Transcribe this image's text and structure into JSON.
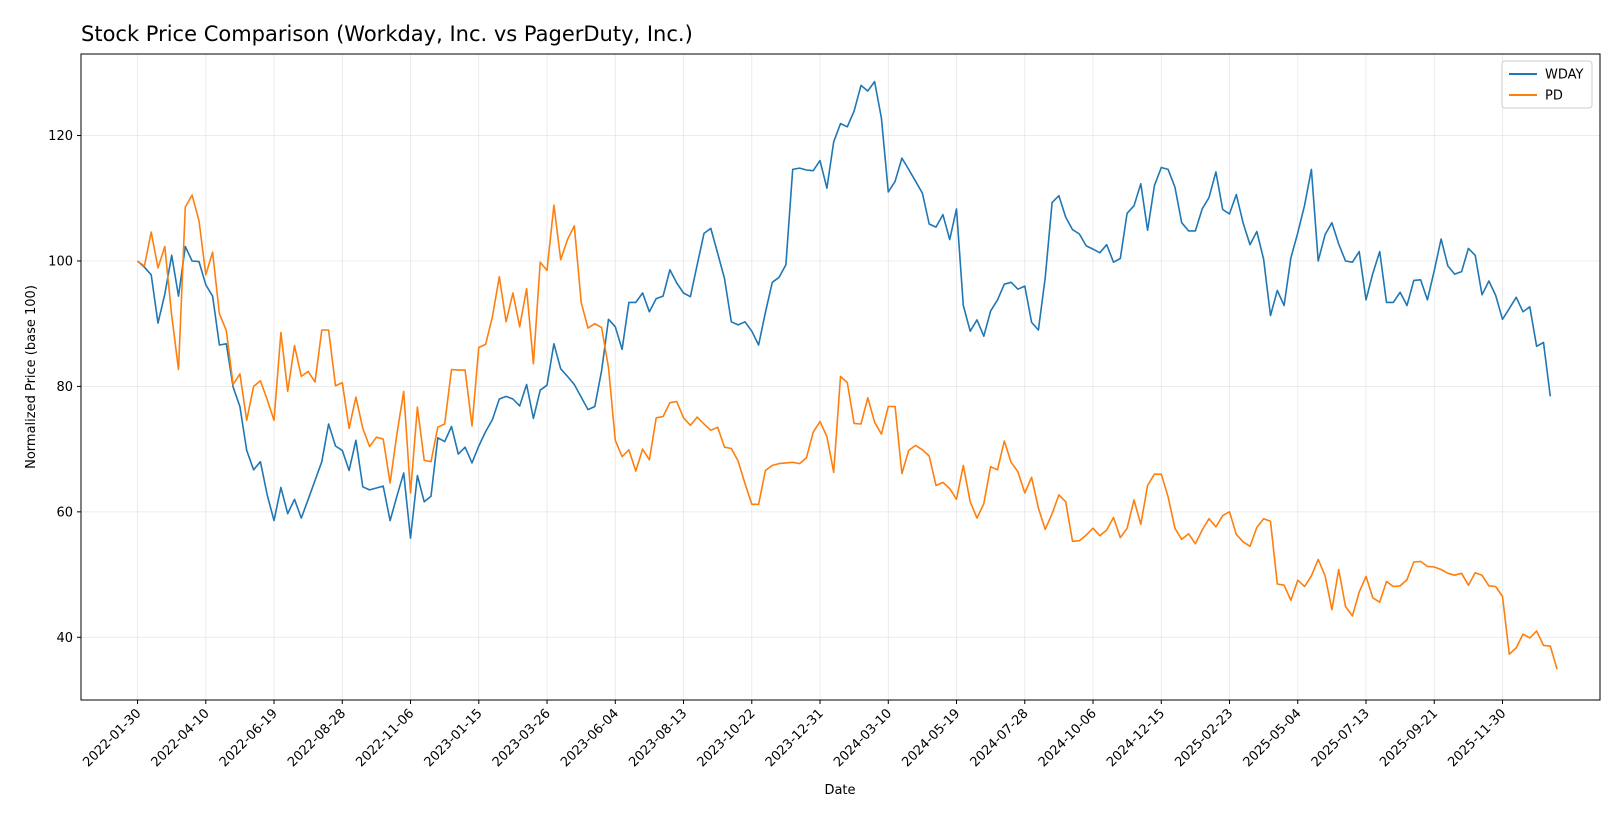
{
  "chart_data": {
    "type": "line",
    "title": "Stock Price Comparison (Workday, Inc. vs PagerDuty, Inc.)",
    "xlabel": "Date",
    "ylabel": "Normalized Price (base 100)",
    "x_range": [
      "2021-12-03",
      "2026-03-10"
    ],
    "ylim": [
      30,
      133
    ],
    "y_ticks": [
      40,
      60,
      80,
      100,
      120
    ],
    "x_ticks": [
      "2022-01-30",
      "2022-04-10",
      "2022-06-19",
      "2022-08-28",
      "2022-11-06",
      "2023-01-15",
      "2023-03-26",
      "2023-06-04",
      "2023-08-13",
      "2023-10-22",
      "2023-12-31",
      "2024-03-10",
      "2024-05-19",
      "2024-07-28",
      "2024-10-06",
      "2024-12-15",
      "2025-02-23",
      "2025-05-04",
      "2025-07-13",
      "2025-09-21",
      "2025-11-30"
    ],
    "grid": true,
    "legend_position": "top-right",
    "start_date": "2022-01-30",
    "step_days": 7,
    "series": [
      {
        "name": "WDAY",
        "color": "#1f77b4",
        "values": [
          100,
          99,
          97.8,
          90.1,
          94.7,
          100.9,
          94.4,
          102.3,
          100,
          99.9,
          96.2,
          94.4,
          86.6,
          86.8,
          79.9,
          76.8,
          69.8,
          66.7,
          68.0,
          62.7,
          58.6,
          63.9,
          59.7,
          62.0,
          59.0,
          62.0,
          65.0,
          68.0,
          74.0,
          70.5,
          69.8,
          66.6,
          71.4,
          64.0,
          63.5,
          63.8,
          64.1,
          58.6,
          62.5,
          66.2,
          55.8,
          65.8,
          61.6,
          62.5,
          71.8,
          71.2,
          73.6,
          69.2,
          70.3,
          67.8,
          70.5,
          72.8,
          74.7,
          78.0,
          78.4,
          78.0,
          76.9,
          80.3,
          74.9,
          79.4,
          80.2,
          86.8,
          82.8,
          81.6,
          80.3,
          78.3,
          76.3,
          76.8,
          82.5,
          90.7,
          89.5,
          85.9,
          93.4,
          93.4,
          94.9,
          91.9,
          94.0,
          94.4,
          98.6,
          96.5,
          94.9,
          94.3,
          99.4,
          104.4,
          105.2,
          101.2,
          97.2,
          90.3,
          89.8,
          90.3,
          88.8,
          86.6,
          91.8,
          96.6,
          97.4,
          99.4,
          114.6,
          114.8,
          114.5,
          114.4,
          116.0,
          111.6,
          119.0,
          121.9,
          121.4,
          123.9,
          128.0,
          127.1,
          128.6,
          122.8,
          111.0,
          112.7,
          116.4,
          114.6,
          112.7,
          110.8,
          105.9,
          105.4,
          107.4,
          103.4,
          108.3,
          92.9,
          88.8,
          90.6,
          88.0,
          92.0,
          93.8,
          96.3,
          96.6,
          95.5,
          96.0,
          90.2,
          89.0,
          97.3,
          109.3,
          110.4,
          107.0,
          105.0,
          104.3,
          102.4,
          101.9,
          101.3,
          102.6,
          99.8,
          100.4,
          107.6,
          108.8,
          112.3,
          104.9,
          112.0,
          114.9,
          114.6,
          111.8,
          106.1,
          104.8,
          104.8,
          108.3,
          110.1,
          114.2,
          108.2,
          107.5,
          110.6,
          106.0,
          102.6,
          104.7,
          100.3,
          91.3,
          95.3,
          92.9,
          100.5,
          104.5,
          108.9,
          114.6,
          100.0,
          104.2,
          106.1,
          102.7,
          100.0,
          99.8,
          101.5,
          93.8,
          98.0,
          101.5,
          93.4,
          93.4,
          95.0,
          92.9,
          96.9,
          97.0,
          93.8,
          98.5,
          103.5,
          99.2,
          97.9,
          98.3,
          102.0,
          100.9,
          94.6,
          96.8,
          94.5,
          90.7,
          92.4,
          94.2,
          91.9,
          92.7,
          86.4,
          87.0,
          78.4
        ]
      },
      {
        "name": "PD",
        "color": "#ff7f0e",
        "values": [
          100,
          99.2,
          104.6,
          98.9,
          102.3,
          91.3,
          82.7,
          108.6,
          110.5,
          106.4,
          97.8,
          101.4,
          91.6,
          88.9,
          80.3,
          82.0,
          74.6,
          80.0,
          80.9,
          77.9,
          74.6,
          88.6,
          79.2,
          86.5,
          81.6,
          82.4,
          80.7,
          89.0,
          89.0,
          80.1,
          80.6,
          73.3,
          78.3,
          73.3,
          70.4,
          71.9,
          71.6,
          64.6,
          72.4,
          79.2,
          63.0,
          76.7,
          68.2,
          68.0,
          73.5,
          74.0,
          82.7,
          82.6,
          82.6,
          73.7,
          86.2,
          86.7,
          91.1,
          97.5,
          90.3,
          94.9,
          89.5,
          95.6,
          83.6,
          99.8,
          98.5,
          108.9,
          100.2,
          103.4,
          105.6,
          93.4,
          89.3,
          90.0,
          89.4,
          83.0,
          71.4,
          68.8,
          69.9,
          66.5,
          70.0,
          68.3,
          75.0,
          75.2,
          77.4,
          77.6,
          75.0,
          73.8,
          75.1,
          74.0,
          73.0,
          73.5,
          70.3,
          70.1,
          68.1,
          64.5,
          61.2,
          61.2,
          66.6,
          67.4,
          67.7,
          67.8,
          67.9,
          67.7,
          68.6,
          72.7,
          74.4,
          72.0,
          66.3,
          81.6,
          80.6,
          74.1,
          74.0,
          78.2,
          74.3,
          72.4,
          76.8,
          76.8,
          66.1,
          69.8,
          70.6,
          69.9,
          68.9,
          64.2,
          64.7,
          63.7,
          62.0,
          67.4,
          61.6,
          59.0,
          61.3,
          67.2,
          66.7,
          71.3,
          67.9,
          66.4,
          63.0,
          65.5,
          60.6,
          57.2,
          59.7,
          62.7,
          61.6,
          55.3,
          55.4,
          56.3,
          57.4,
          56.2,
          57.1,
          59.1,
          55.9,
          57.4,
          61.9,
          58.0,
          64.2,
          66.0,
          66.0,
          62.4,
          57.4,
          55.6,
          56.5,
          54.9,
          57.1,
          58.9,
          57.6,
          59.4,
          60.0,
          56.4,
          55.2,
          54.5,
          57.5,
          58.9,
          58.5,
          48.5,
          48.3,
          45.9,
          49.1,
          48.1,
          49.8,
          52.4,
          49.8,
          44.4,
          50.8,
          44.9,
          43.4,
          47.2,
          49.7,
          46.3,
          45.6,
          48.9,
          48.1,
          48.2,
          49.2,
          52.0,
          52.1,
          51.3,
          51.2,
          50.8,
          50.2,
          49.9,
          50.2,
          48.3,
          50.3,
          49.9,
          48.2,
          48.1,
          46.5,
          37.3,
          38.3,
          40.5,
          39.9,
          41.0,
          38.7,
          38.6,
          34.9
        ]
      }
    ]
  }
}
